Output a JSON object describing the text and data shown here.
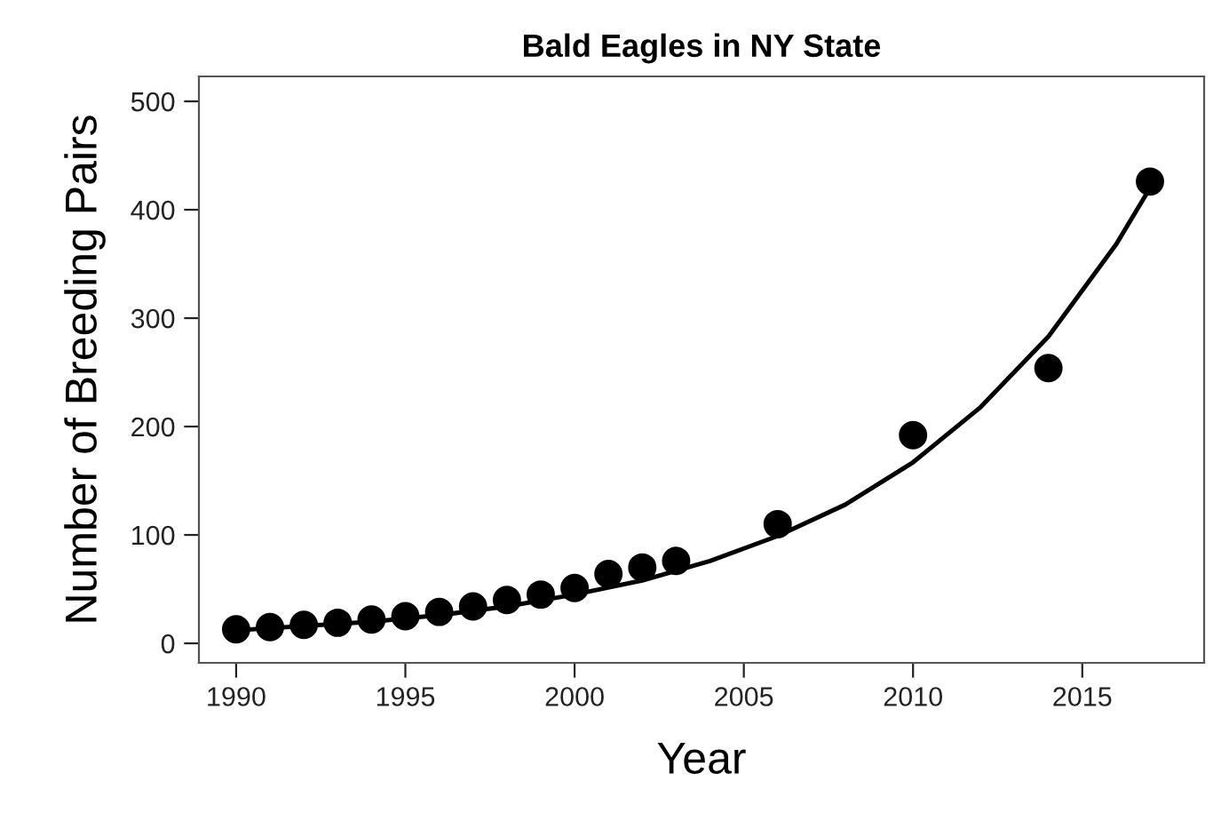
{
  "chart_data": {
    "type": "scatter",
    "title": "Bald Eagles in NY State",
    "xlabel": "Year",
    "ylabel": "Number of Breeding Pairs",
    "xlim": [
      1988.9,
      2018.6
    ],
    "ylim": [
      -18,
      523
    ],
    "xticks": [
      1990,
      1995,
      2000,
      2005,
      2010,
      2015
    ],
    "yticks": [
      0,
      100,
      200,
      300,
      400,
      500
    ],
    "grid": false,
    "marker": "circle",
    "series": [
      {
        "color": "#000000",
        "x": [
          1990,
          1991,
          1992,
          1993,
          1994,
          1995,
          1996,
          1997,
          1998,
          1999,
          2000,
          2001,
          2002,
          2003,
          2006,
          2010,
          2014,
          2017
        ],
        "values": [
          13,
          15,
          17,
          19,
          22,
          25,
          29,
          34,
          40,
          45,
          51,
          64,
          70,
          76,
          110,
          192,
          254,
          426
        ]
      },
      {
        "type": "line",
        "color": "#000000",
        "marker": "none",
        "line_style": "solid",
        "x": [
          1990,
          1992,
          1994,
          1996,
          1998,
          2000,
          2002,
          2004,
          2006,
          2008,
          2010,
          2012,
          2014,
          2016,
          2017
        ],
        "values": [
          12,
          16,
          20,
          26,
          34,
          45,
          58,
          76,
          99,
          128,
          167,
          218,
          283,
          368,
          420
        ]
      }
    ]
  }
}
